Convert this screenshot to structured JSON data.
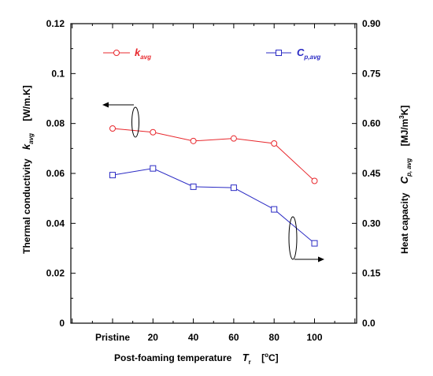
{
  "chart_data": {
    "type": "line",
    "categories": [
      "Pristine",
      "20",
      "40",
      "60",
      "80",
      "100"
    ],
    "xlabel": {
      "main": "Post-foaming temperature",
      "symbol": "T",
      "subscript": "r",
      "unit_open": "[",
      "unit_degree": "o",
      "unit_rest": "C]"
    },
    "y_left": {
      "label_main": "Thermal conductivity",
      "symbol": "k",
      "subscript": "avg",
      "unit": "[W/m.K]",
      "ylim": [
        0,
        0.12
      ],
      "ticks": [
        "0",
        "0.02",
        "0.04",
        "0.06",
        "0.08",
        "0.1",
        "0.12"
      ]
    },
    "y_right": {
      "label_main": "Heat capacity",
      "symbol": "C",
      "subscript": "p, avg",
      "unit_main": "[MJ/m",
      "unit_sup": "3",
      "unit_end": "K]",
      "ylim": [
        0,
        0.9
      ],
      "ticks": [
        "0.0",
        "0.15",
        "0.30",
        "0.45",
        "0.60",
        "0.75",
        "0.90"
      ]
    },
    "series": [
      {
        "name": "k",
        "name_sub": "avg",
        "axis": "left",
        "marker": "circle",
        "color": "#e8282d",
        "values": [
          0.078,
          0.0765,
          0.073,
          0.074,
          0.072,
          0.057
        ]
      },
      {
        "name": "C",
        "name_sub": "p,avg",
        "axis": "right",
        "marker": "square",
        "color": "#2b2bc4",
        "values": [
          0.445,
          0.465,
          0.41,
          0.407,
          0.342,
          0.24
        ]
      }
    ],
    "legend": "top",
    "grid": false,
    "annotations": [
      "ellipse with arrow pointing to left axis on k series",
      "ellipse with arrow pointing to right axis on C series"
    ]
  }
}
